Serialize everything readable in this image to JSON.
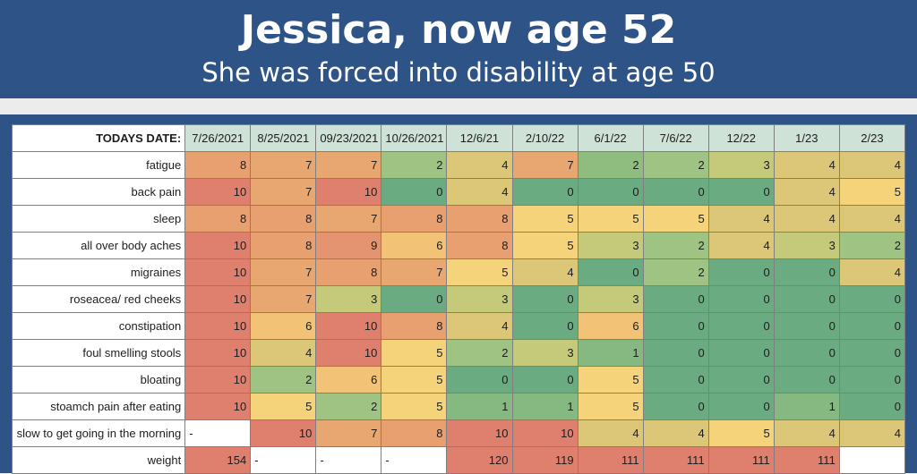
{
  "header": {
    "title": "Jessica, now age 52",
    "subtitle": "She was forced into disability at age 50"
  },
  "table": {
    "corner_label": "TODAYS DATE:",
    "dates": [
      "7/26/2021",
      "8/25/2021",
      "09/23/2021",
      "10/26/2021",
      "12/6/21",
      "2/10/22",
      "6/1/22",
      "7/6/22",
      "12/22",
      "1/23",
      "2/23"
    ],
    "rows": [
      {
        "label": "fatigue",
        "values": [
          "8",
          "7",
          "7",
          "2",
          "4",
          "7",
          "2",
          "2",
          "3",
          "4",
          "4"
        ],
        "colors": [
          "#e8a070",
          "#e8a670",
          "#e8a670",
          "#9fc383",
          "#dcc677",
          "#e8a670",
          "#8fbd80",
          "#9fc383",
          "#c5c97a",
          "#dcc677",
          "#dcc677"
        ]
      },
      {
        "label": "back pain",
        "values": [
          "10",
          "7",
          "10",
          "0",
          "4",
          "0",
          "0",
          "0",
          "0",
          "4",
          "5"
        ],
        "colors": [
          "#df806f",
          "#e8a670",
          "#df806f",
          "#6aab82",
          "#dcc677",
          "#6aab82",
          "#6aab82",
          "#6aab82",
          "#6aab82",
          "#dcc677",
          "#f5d37a"
        ]
      },
      {
        "label": "sleep",
        "values": [
          "8",
          "8",
          "7",
          "8",
          "8",
          "5",
          "5",
          "5",
          "4",
          "4",
          "4"
        ],
        "colors": [
          "#e8a070",
          "#e8a070",
          "#e8a670",
          "#e8a070",
          "#e8a070",
          "#f5d37a",
          "#f5d37a",
          "#f5d37a",
          "#dcc677",
          "#dcc677",
          "#dcc677"
        ]
      },
      {
        "label": "all over body aches",
        "values": [
          "10",
          "8",
          "9",
          "6",
          "8",
          "5",
          "3",
          "2",
          "4",
          "3",
          "2"
        ],
        "colors": [
          "#df806f",
          "#e8a070",
          "#e59472",
          "#f2c276",
          "#e8a070",
          "#f5d37a",
          "#c5c97a",
          "#9fc383",
          "#dcc677",
          "#c5c97a",
          "#9fc383"
        ]
      },
      {
        "label": "migraines",
        "values": [
          "10",
          "7",
          "8",
          "7",
          "5",
          "4",
          "0",
          "2",
          "0",
          "0",
          "4"
        ],
        "colors": [
          "#df806f",
          "#e8a670",
          "#e8a070",
          "#e8a670",
          "#f5d37a",
          "#dcc677",
          "#6aab82",
          "#9fc383",
          "#6aab82",
          "#6aab82",
          "#dcc677"
        ]
      },
      {
        "label": "roseacea/ red cheeks",
        "values": [
          "10",
          "7",
          "3",
          "0",
          "3",
          "0",
          "3",
          "0",
          "0",
          "0",
          "0"
        ],
        "colors": [
          "#df806f",
          "#e8a670",
          "#c5c97a",
          "#6aab82",
          "#c5c97a",
          "#6aab82",
          "#c5c97a",
          "#6aab82",
          "#6aab82",
          "#6aab82",
          "#6aab82"
        ]
      },
      {
        "label": "constipation",
        "values": [
          "10",
          "6",
          "10",
          "8",
          "4",
          "0",
          "6",
          "0",
          "0",
          "0",
          "0"
        ],
        "colors": [
          "#df806f",
          "#f2c276",
          "#df806f",
          "#e8a070",
          "#dcc677",
          "#6aab82",
          "#f2c276",
          "#6aab82",
          "#6aab82",
          "#6aab82",
          "#6aab82"
        ]
      },
      {
        "label": "foul smelling stools",
        "values": [
          "10",
          "4",
          "10",
          "5",
          "2",
          "3",
          "1",
          "0",
          "0",
          "0",
          "0"
        ],
        "colors": [
          "#df806f",
          "#dcc677",
          "#df806f",
          "#f5d37a",
          "#9fc383",
          "#c5c97a",
          "#86b981",
          "#6aab82",
          "#6aab82",
          "#6aab82",
          "#6aab82"
        ]
      },
      {
        "label": "bloating",
        "values": [
          "10",
          "2",
          "6",
          "5",
          "0",
          "0",
          "5",
          "0",
          "0",
          "0",
          "0"
        ],
        "colors": [
          "#df806f",
          "#9fc383",
          "#f2c276",
          "#f5d37a",
          "#6aab82",
          "#6aab82",
          "#f5d37a",
          "#6aab82",
          "#6aab82",
          "#6aab82",
          "#6aab82"
        ]
      },
      {
        "label": "stoamch pain after eating",
        "values": [
          "10",
          "5",
          "2",
          "5",
          "1",
          "1",
          "5",
          "0",
          "0",
          "1",
          "0"
        ],
        "colors": [
          "#df806f",
          "#f5d37a",
          "#9fc383",
          "#f5d37a",
          "#86b981",
          "#86b981",
          "#f5d37a",
          "#6aab82",
          "#6aab82",
          "#86b981",
          "#6aab82"
        ]
      },
      {
        "label": "slow to get going in the morning",
        "values": [
          "-",
          "10",
          "7",
          "8",
          "10",
          "10",
          "4",
          "4",
          "5",
          "4",
          "4"
        ],
        "colors": [
          "#ffffff",
          "#df806f",
          "#e8a670",
          "#e8a070",
          "#df806f",
          "#df806f",
          "#dcc677",
          "#dcc677",
          "#f5d37a",
          "#dcc677",
          "#dcc677"
        ]
      },
      {
        "label": "weight",
        "values": [
          "154",
          "-",
          "-",
          "-",
          "120",
          "119",
          "111",
          "111",
          "111",
          "111",
          ""
        ],
        "colors": [
          "#df806f",
          "#ffffff",
          "#ffffff",
          "#ffffff",
          "#df806f",
          "#df806f",
          "#df806f",
          "#df806f",
          "#df806f",
          "#df806f",
          "#ffffff"
        ]
      }
    ]
  }
}
